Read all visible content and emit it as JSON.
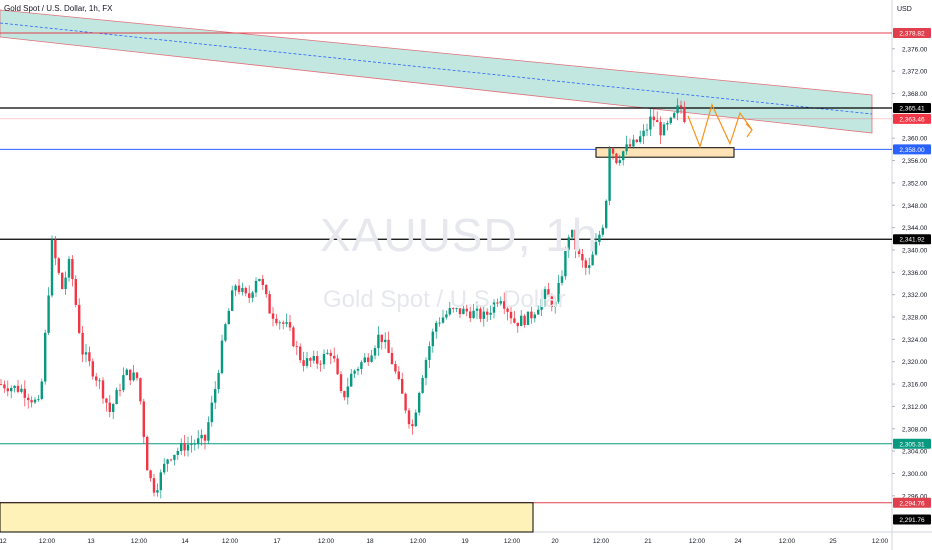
{
  "header": {
    "title": "Gold Spot / U.S. Dollar, 1h, FX"
  },
  "currency_label": "USD",
  "watermark": {
    "symbol": "XAUUSD, 1h",
    "name": "Gold Spot / U.S. Dollar"
  },
  "chart_data": {
    "type": "candlestick",
    "title": "Gold Spot / U.S. Dollar, 1h, FX",
    "ylim": [
      2290.6,
      2383.3
    ],
    "y_ticks": [
      "2,376.00",
      "2,372.00",
      "2,368.00",
      "2,364.00",
      "2,360.00",
      "2,356.00",
      "2,352.00",
      "2,348.00",
      "2,344.00",
      "2,340.00",
      "2,336.00",
      "2,332.00",
      "2,328.00",
      "2,324.00",
      "2,320.00",
      "2,316.00",
      "2,312.00",
      "2,308.00",
      "2,304.00",
      "2,300.00",
      "2,296.00"
    ],
    "x_ticks": [
      "12",
      "12:00",
      "13",
      "12:00",
      "14",
      "12:00",
      "17",
      "12:00",
      "18",
      "12:00",
      "19",
      "12:00",
      "20",
      "12:00",
      "21",
      "12:00",
      "24",
      "12:00",
      "25",
      "12:00"
    ],
    "price_labels": [
      {
        "value": "2,378.82",
        "color": "#e0404d"
      },
      {
        "value": "2,365.41",
        "color": "#000000"
      },
      {
        "value": "2,363.46",
        "color": "#f23645"
      },
      {
        "value": "2,358.00",
        "color": "#2962ff"
      },
      {
        "value": "2,341.92",
        "color": "#000000"
      },
      {
        "value": "2,305.31",
        "color": "#089981"
      },
      {
        "value": "2,294.76",
        "color": "#e0404d"
      },
      {
        "value": "2,291.76",
        "color": "#000000"
      }
    ],
    "levels": [
      {
        "price": 2378.82,
        "color": "#e0404d"
      },
      {
        "price": 2365.41,
        "color": "#000000"
      },
      {
        "price": 2358.0,
        "color": "#2962ff"
      },
      {
        "price": 2341.92,
        "color": "#000000"
      },
      {
        "price": 2305.31,
        "color": "#089981"
      },
      {
        "price": 2294.76,
        "color": "#e0404d"
      }
    ],
    "colors": {
      "up": "#089981",
      "down": "#f23645",
      "channel": "#8fd3c6",
      "projection": "#f7931a"
    }
  }
}
